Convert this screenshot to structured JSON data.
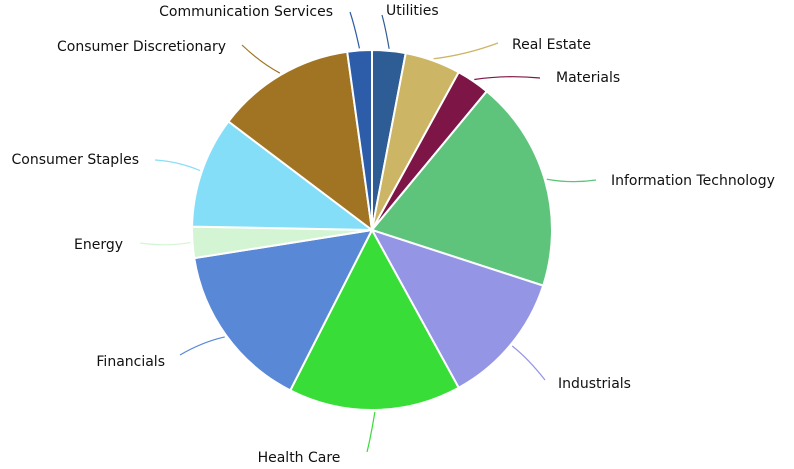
{
  "chart_data": {
    "type": "pie",
    "title": "",
    "legend": "none",
    "series": [
      {
        "slices": [
          {
            "label": "Utilities",
            "value": 3.0,
            "color": "#2e5c94"
          },
          {
            "label": "Real Estate",
            "value": 5.0,
            "color": "#ccb565"
          },
          {
            "label": "Materials",
            "value": 3.0,
            "color": "#7d1546"
          },
          {
            "label": "Information Technology",
            "value": 19.0,
            "color": "#5ec47c"
          },
          {
            "label": "Industrials",
            "value": 12.0,
            "color": "#9595e6"
          },
          {
            "label": "Health Care",
            "value": 15.5,
            "color": "#38dd38"
          },
          {
            "label": "Financials",
            "value": 15.0,
            "color": "#5888d6"
          },
          {
            "label": "Energy",
            "value": 2.8,
            "color": "#d4f5d4"
          },
          {
            "label": "Consumer Staples",
            "value": 10.0,
            "color": "#85def8"
          },
          {
            "label": "Consumer Discretionary",
            "value": 12.5,
            "color": "#a17423"
          },
          {
            "label": "Communication Services",
            "value": 2.2,
            "color": "#2d5ca8"
          }
        ]
      }
    ]
  }
}
